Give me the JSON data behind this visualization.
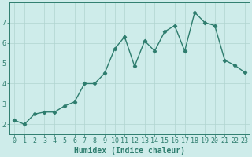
{
  "x": [
    0,
    1,
    2,
    3,
    4,
    5,
    6,
    7,
    8,
    9,
    10,
    11,
    12,
    13,
    14,
    15,
    16,
    17,
    18,
    19,
    20,
    21,
    22,
    23
  ],
  "y": [
    2.2,
    2.0,
    2.5,
    2.6,
    2.6,
    2.9,
    3.1,
    4.0,
    4.0,
    4.5,
    5.7,
    6.3,
    4.85,
    6.1,
    5.6,
    6.55,
    6.85,
    5.6,
    7.5,
    7.0,
    6.85,
    5.15,
    4.9,
    4.55
  ],
  "line_color": "#2e7d6e",
  "marker": "D",
  "markersize": 2.2,
  "linewidth": 1.0,
  "bg_color": "#ceecea",
  "grid_color": "#b0d4d0",
  "xlabel": "Humidex (Indice chaleur)",
  "xlabel_fontsize": 7,
  "tick_fontsize": 6,
  "xlim": [
    -0.5,
    23.5
  ],
  "ylim": [
    1.5,
    8.0
  ],
  "yticks": [
    2,
    3,
    4,
    5,
    6,
    7
  ],
  "xticks": [
    0,
    1,
    2,
    3,
    4,
    5,
    6,
    7,
    8,
    9,
    10,
    11,
    12,
    13,
    14,
    15,
    16,
    17,
    18,
    19,
    20,
    21,
    22,
    23
  ]
}
